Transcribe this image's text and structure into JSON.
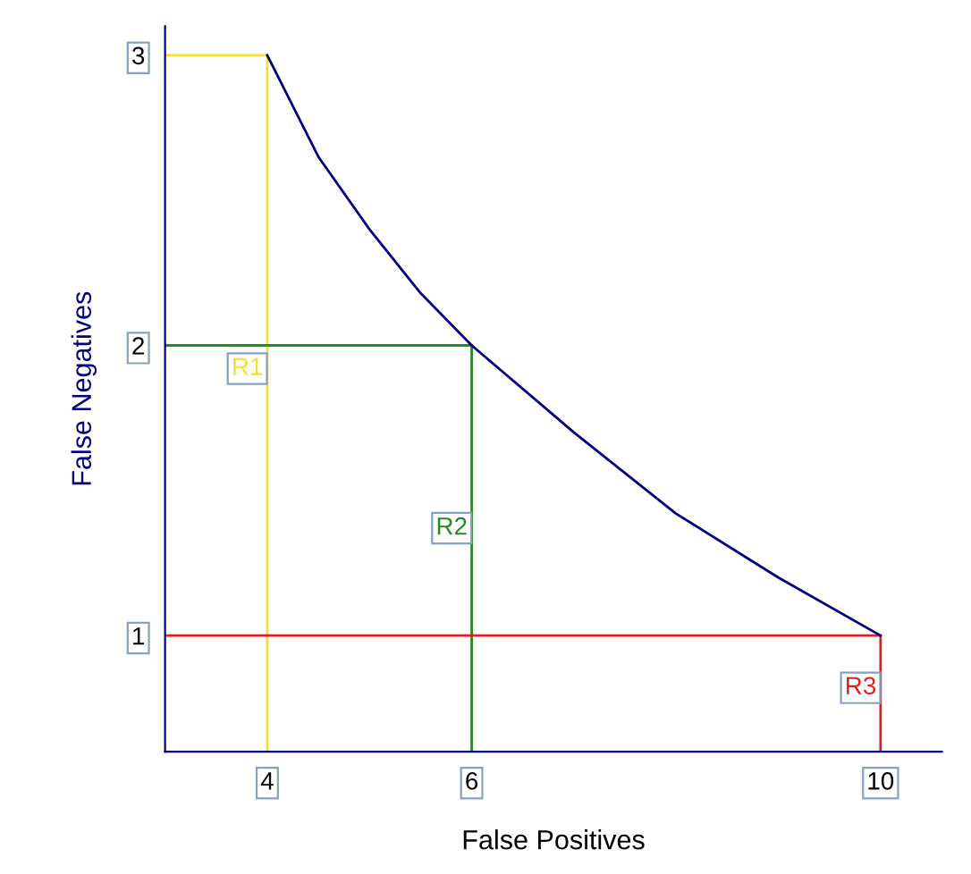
{
  "chart_data": {
    "type": "line",
    "xlabel": "False Positives",
    "ylabel": "False Negatives",
    "xlim": [
      3,
      10.6
    ],
    "ylim": [
      0.6,
      3.1
    ],
    "xticks": [
      4,
      6,
      10
    ],
    "yticks": [
      1,
      2,
      3
    ],
    "grid": false,
    "legend": false,
    "marker": "none",
    "line_style": "solid",
    "series": [
      {
        "x": [
          3,
          4,
          4
        ],
        "values": [
          3,
          3,
          0.6
        ],
        "color": "#f2e030",
        "name": "R1"
      },
      {
        "x": [
          3,
          6,
          6
        ],
        "values": [
          2,
          2,
          0.6
        ],
        "color": "#228b22",
        "name": "R2"
      },
      {
        "x": [
          3,
          10,
          10
        ],
        "values": [
          1,
          1,
          0.6
        ],
        "color": "#e02020",
        "name": "R3"
      },
      {
        "x": [
          4,
          4.5,
          5,
          5.5,
          6,
          7,
          8,
          9,
          10
        ],
        "values": [
          3,
          2.65,
          2.4,
          2.18,
          2,
          1.7,
          1.42,
          1.2,
          1
        ],
        "color": "#000080"
      }
    ]
  }
}
